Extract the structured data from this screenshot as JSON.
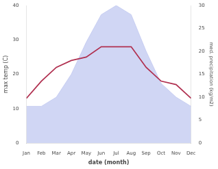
{
  "chart_data": {
    "type": "line",
    "xlabel": "date (month)",
    "ylabel": "max temp (C)",
    "y2label": "med. precipitation (kg/m2)",
    "categories": [
      "Jan",
      "Feb",
      "Mar",
      "Apr",
      "May",
      "Jun",
      "Jul",
      "Aug",
      "Sep",
      "Oct",
      "Nov",
      "Dec"
    ],
    "series": [
      {
        "type": "area",
        "axis": "y2",
        "color": "#c0c8f0",
        "values": [
          8,
          8,
          10,
          15,
          22,
          28,
          30,
          28,
          20,
          13,
          10,
          8
        ]
      },
      {
        "type": "line",
        "color": "#b03050",
        "values": [
          13,
          18,
          22,
          24,
          25,
          28,
          28,
          28,
          22,
          18,
          17,
          13
        ]
      }
    ],
    "ylim": [
      0,
      40
    ],
    "yticks": [
      0,
      10,
      20,
      30,
      40
    ],
    "y2lim": [
      0,
      30
    ],
    "y2ticks": [
      0,
      5,
      10,
      15,
      20,
      25,
      30
    ],
    "grid": false
  }
}
